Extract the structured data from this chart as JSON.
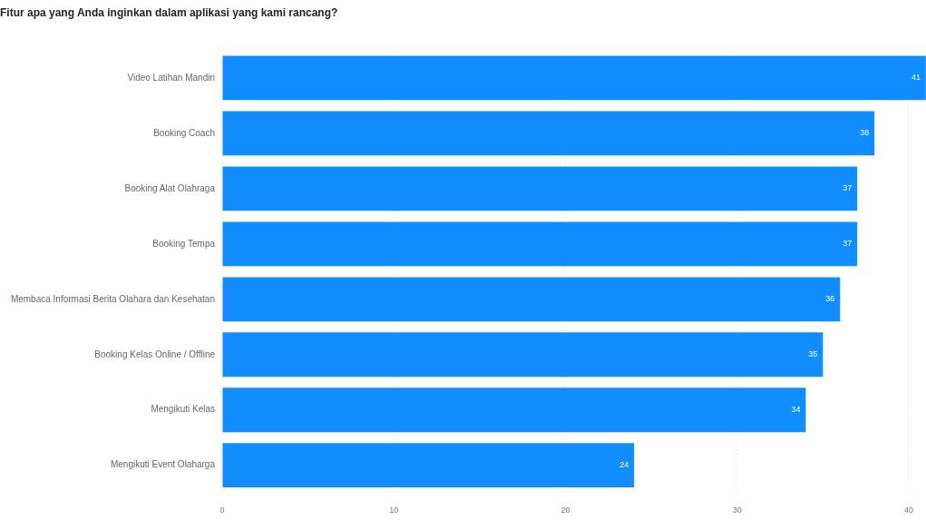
{
  "chart_data": {
    "type": "bar",
    "orientation": "horizontal",
    "title": "Fitur apa yang Anda inginkan dalam aplikasi yang kami rancang?",
    "categories": [
      "Video Latihan Mandiri",
      "Booking Coach",
      "Booking Alat Olahraga",
      "Booking Tempa",
      "Membaca Informasi Berita Olahara dan Kesehatan",
      "Booking Kelas Online / Offline",
      "Mengikuti Kelas",
      "Mengikuti Event Olaharga"
    ],
    "values": [
      41,
      38,
      37,
      37,
      36,
      35,
      34,
      24
    ],
    "color": "#118dff",
    "xlim": [
      0,
      41
    ],
    "xticks": [
      0,
      10,
      20,
      30,
      40
    ],
    "grid": "x",
    "data_labels": true
  }
}
